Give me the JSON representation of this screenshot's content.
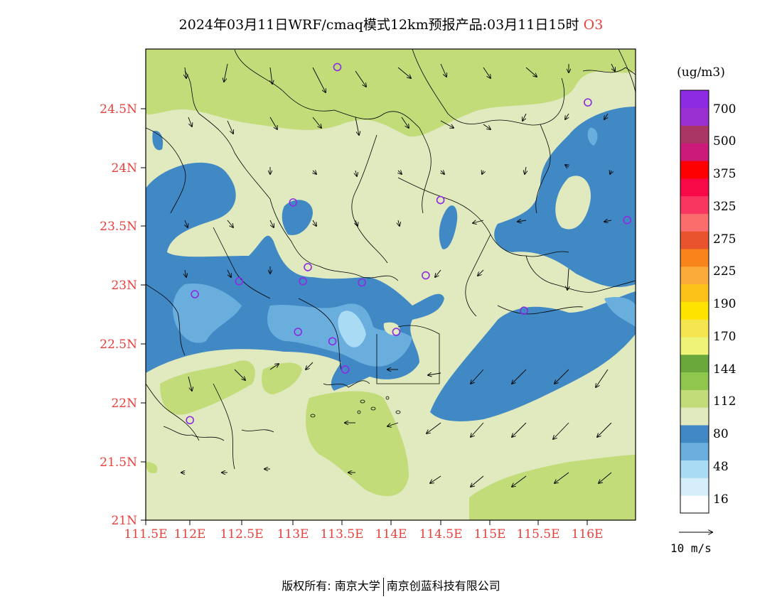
{
  "title": {
    "main": "2024年03月11日WRF/cmaq模式12km预报产品:03月11日15时",
    "species": "O3"
  },
  "axes": {
    "lat_ticks": [
      "24.5N",
      "24N",
      "23.5N",
      "23N",
      "22.5N",
      "22N",
      "21.5N",
      "21N"
    ],
    "lon_ticks": [
      "111.5E",
      "112E",
      "112.5E",
      "113E",
      "113.5E",
      "114E",
      "114.5E",
      "115E",
      "115.5E",
      "116E"
    ]
  },
  "colorbar": {
    "unit": "(ug/m3)",
    "labels": [
      "700",
      "500",
      "375",
      "325",
      "275",
      "225",
      "190",
      "170",
      "144",
      "112",
      "80",
      "48",
      "16"
    ],
    "colors": [
      "#ffffff",
      "#d6eefa",
      "#a9dcf4",
      "#6aaede",
      "#4189c4",
      "#e1e9be",
      "#c2dc7a",
      "#8fc64d",
      "#6aa83c",
      "#eef478",
      "#f5e650",
      "#ffe400",
      "#fcc21a",
      "#fbab3a",
      "#f9841b",
      "#e9542f",
      "#fb6c6c",
      "#f83660",
      "#f70847",
      "#fe0000",
      "#cc1a7a",
      "#aa3666",
      "#9b30d0",
      "#8c2be2"
    ]
  },
  "vector_legend": {
    "label": "10 m/s"
  },
  "footer": {
    "left": "版权所有: 南京大学",
    "right": "南京创蓝科技有限公司"
  },
  "colors": {
    "land_base": "#e1e9be",
    "green_high": "#c2dc7a",
    "blue_mid": "#4189c4",
    "blue_light": "#6aaede",
    "blue_pale": "#a9dcf4",
    "station_marker": "#8c2be2",
    "tick_label": "#e8413c"
  },
  "stations": [
    {
      "lon": 113.45,
      "lat": 24.85
    },
    {
      "lon": 116.0,
      "lat": 24.55
    },
    {
      "lon": 113.0,
      "lat": 23.7
    },
    {
      "lon": 114.5,
      "lat": 23.72
    },
    {
      "lon": 116.4,
      "lat": 23.55
    },
    {
      "lon": 113.15,
      "lat": 23.15
    },
    {
      "lon": 112.45,
      "lat": 23.03
    },
    {
      "lon": 113.1,
      "lat": 23.03
    },
    {
      "lon": 113.7,
      "lat": 23.02
    },
    {
      "lon": 114.35,
      "lat": 23.08
    },
    {
      "lon": 112.0,
      "lat": 22.92
    },
    {
      "lon": 115.35,
      "lat": 22.78
    },
    {
      "lon": 113.05,
      "lat": 22.6
    },
    {
      "lon": 113.4,
      "lat": 22.52
    },
    {
      "lon": 114.05,
      "lat": 22.6
    },
    {
      "lon": 113.53,
      "lat": 22.28
    },
    {
      "lon": 111.95,
      "lat": 21.85
    }
  ]
}
